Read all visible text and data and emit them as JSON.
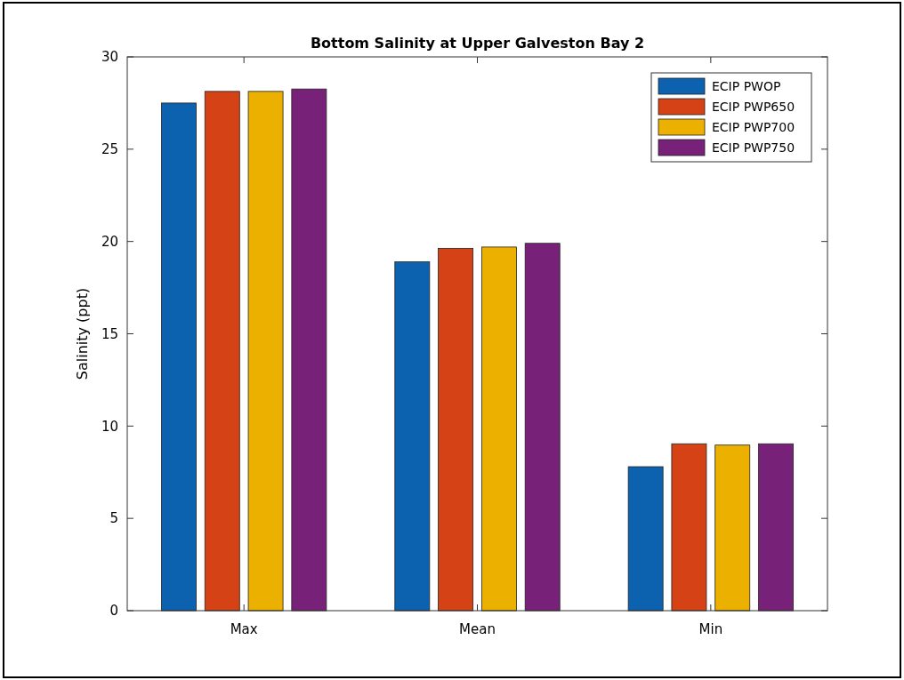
{
  "chart_data": {
    "type": "bar",
    "title": "Bottom Salinity at Upper Galveston Bay 2",
    "ylabel": "Salinity (ppt)",
    "categories": [
      "Max",
      "Mean",
      "Min"
    ],
    "series": [
      {
        "name": "ECIP PWOP",
        "color": "#0c62ae",
        "values": [
          27.5,
          18.9,
          7.8
        ]
      },
      {
        "name": "ECIP PWP650",
        "color": "#d54215",
        "values": [
          28.13,
          19.63,
          9.04
        ]
      },
      {
        "name": "ECIP PWP700",
        "color": "#ebb000",
        "values": [
          28.13,
          19.7,
          8.97
        ]
      },
      {
        "name": "ECIP PWP750",
        "color": "#782178",
        "values": [
          28.26,
          19.9,
          9.04
        ]
      }
    ],
    "ylim": [
      0,
      30
    ],
    "yticks": [
      0,
      5,
      10,
      15,
      20,
      25,
      30
    ],
    "grid": false,
    "legend": "top right"
  }
}
